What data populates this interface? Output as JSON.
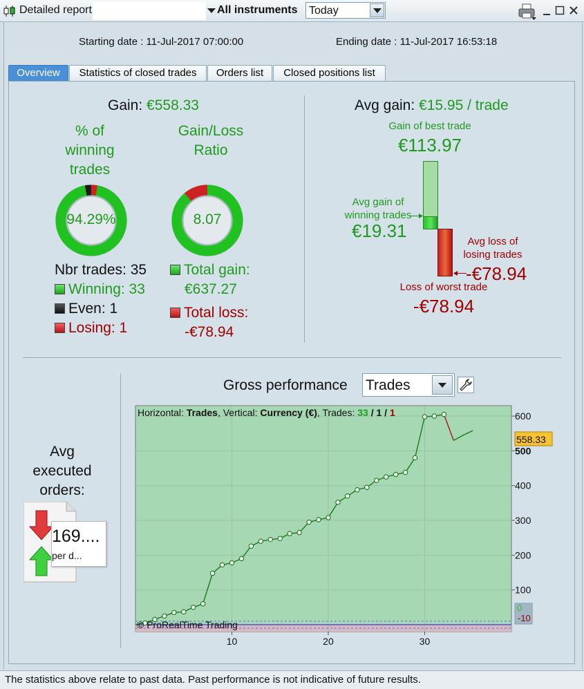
{
  "titlebar": {
    "title": "Detailed report",
    "instrument_label": "All instruments",
    "period_value": "Today"
  },
  "dates": {
    "start": "Starting date : 11-Jul-2017 07:00:00",
    "end": "Ending date : 11-Jul-2017 16:53:18"
  },
  "tabs": [
    "Overview",
    "Statistics of closed trades",
    "Orders list",
    "Closed positions list"
  ],
  "overview": {
    "gain_label": "Gain:",
    "gain_value": "€558.33",
    "pct_winning_label": [
      "% of",
      "winning",
      "trades"
    ],
    "pct_winning_value": "94.29%",
    "pct_winning_fraction": 0.9429,
    "ratio_label": [
      "Gain/Loss",
      "Ratio"
    ],
    "ratio_value": "8.07",
    "nbr_trades": "Nbr trades: 35",
    "winning": "Winning: 33",
    "even": "Even: 1",
    "losing": "Losing: 1",
    "total_gain_label": "Total gain:",
    "total_gain_value": "€637.27",
    "total_loss_label": "Total loss:",
    "total_loss_value": "-€78.94",
    "avg_gain_label": "Avg gain:",
    "avg_gain_value": "€15.95 / trade",
    "best_trade_label": "Gain of best trade",
    "best_trade_value": "€113.97",
    "avg_win_label": [
      "Avg gain of",
      "winning trades"
    ],
    "avg_win_value": "€19.31",
    "avg_loss_label": [
      "Avg loss of",
      "losing trades"
    ],
    "avg_loss_value": "-€78.94",
    "worst_trade_label": "Loss of worst trade",
    "worst_trade_value": "-€78.94"
  },
  "orders": {
    "label": [
      "Avg",
      "executed",
      "orders:"
    ],
    "value": "169....",
    "unit": "per d..."
  },
  "performance": {
    "title": "Gross performance",
    "mode": "Trades",
    "info_prefix": "Horizontal: ",
    "info_h": "Trades",
    "info_mid": ", Vertical: ",
    "info_v": "Currency (€)",
    "info_trades": ", Trades: ",
    "info_w": "33",
    "info_sep1": " / ",
    "info_e": "1",
    "info_sep2": " / ",
    "info_l": "1",
    "copyright": "© ProRealTime Trading",
    "current_label": "558.33",
    "zero_label": "0",
    "neg_label": "-10"
  },
  "chart_data": {
    "type": "line",
    "x": [
      1,
      2,
      3,
      4,
      5,
      6,
      7,
      8,
      9,
      10,
      11,
      12,
      13,
      14,
      15,
      16,
      17,
      18,
      19,
      20,
      21,
      22,
      23,
      24,
      25,
      26,
      27,
      28,
      29,
      30,
      31,
      32,
      33,
      34,
      35
    ],
    "values": [
      5,
      15,
      25,
      35,
      37,
      50,
      60,
      148,
      172,
      178,
      190,
      226,
      240,
      245,
      248,
      262,
      265,
      295,
      302,
      308,
      352,
      370,
      388,
      395,
      415,
      425,
      432,
      438,
      480,
      598,
      600,
      605,
      530,
      545,
      558.33
    ],
    "xticks": [
      10,
      20,
      30
    ],
    "yticks": [
      100,
      200,
      300,
      400,
      500,
      600
    ],
    "xlim": [
      0,
      39
    ],
    "ylim": [
      -20,
      630
    ],
    "xlabel": "Trades",
    "ylabel": "Currency (€)",
    "colors": {
      "up": "#1a7a1a",
      "down": "#b01010",
      "area_pos": "#a7d8b4",
      "area_neg": "#d6b9c1"
    }
  },
  "status": "The statistics above relate to past data. Past performance is not indicative of future results."
}
